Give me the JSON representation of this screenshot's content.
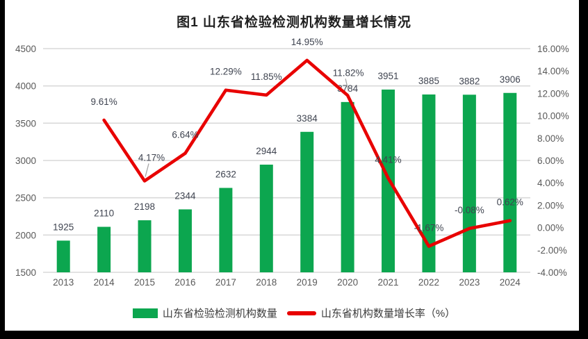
{
  "chart_data": {
    "type": "bar+line combo",
    "title": "图1  山东省检验检测机构数量增长情况",
    "categories": [
      "2013",
      "2014",
      "2015",
      "2016",
      "2017",
      "2018",
      "2019",
      "2020",
      "2021",
      "2022",
      "2023",
      "2024"
    ],
    "series": [
      {
        "name": "山东省检验检测机构数量",
        "type": "bar",
        "axis": "left",
        "color": "#0CA64F",
        "values": [
          1925,
          2110,
          2198,
          2344,
          2632,
          2944,
          3384,
          3784,
          3951,
          3885,
          3882,
          3906
        ],
        "labels": [
          "1925",
          "2110",
          "2198",
          "2344",
          "2632",
          "2944",
          "3384",
          "3784",
          "3951",
          "3885",
          "3882",
          "3906"
        ]
      },
      {
        "name": "山东省机构数量增长率（%）",
        "type": "line",
        "axis": "right",
        "color": "#E80000",
        "values": [
          null,
          9.61,
          4.17,
          6.64,
          12.29,
          11.85,
          14.95,
          11.82,
          4.41,
          -1.67,
          -0.08,
          0.62
        ],
        "labels": [
          "",
          "9.61%",
          "4.17%",
          "6.64%",
          "12.29%",
          "11.85%",
          "14.95%",
          "11.82%",
          "4.41%",
          "-1.67%",
          "-0.08%",
          "0.62%"
        ]
      }
    ],
    "left_axis": {
      "min": 1500,
      "max": 4500,
      "step": 500,
      "ticks": [
        "4500",
        "4000",
        "3500",
        "3000",
        "2500",
        "2000",
        "1500"
      ]
    },
    "right_axis": {
      "min": -4,
      "max": 16,
      "step": 2,
      "ticks": [
        "16.00%",
        "14.00%",
        "12.00%",
        "10.00%",
        "8.00%",
        "6.00%",
        "4.00%",
        "2.00%",
        "0.00%",
        "-2.00%",
        "-4.00%"
      ]
    },
    "grid": true,
    "legend_position": "bottom",
    "colors": {
      "gridline": "#D9D9D9",
      "tick_text": "#595959",
      "data_label": "#3F4450",
      "leader_line": "#A6A6A6",
      "frame": "#000000"
    }
  },
  "legend": {
    "items": [
      {
        "label": "山东省检验检测机构数量",
        "shape": "bar",
        "color": "#0CA64F"
      },
      {
        "label": "山东省机构数量增长率（%）",
        "shape": "line",
        "color": "#E80000"
      }
    ]
  }
}
